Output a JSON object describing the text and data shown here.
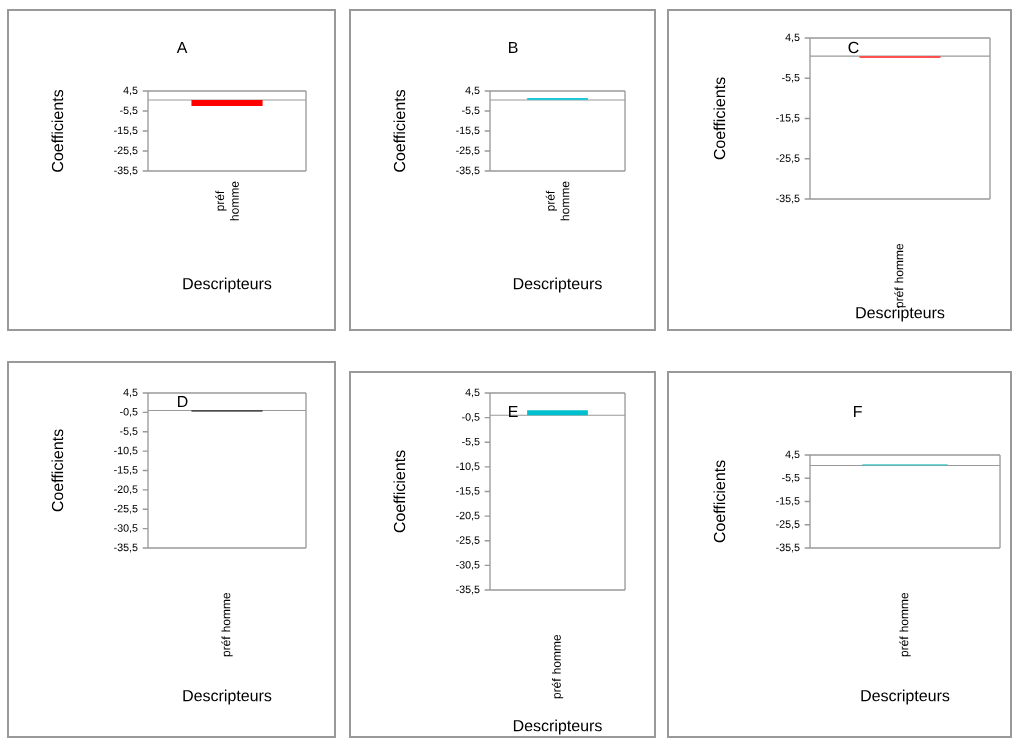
{
  "chart_data": [
    {
      "type": "bar",
      "title": "A",
      "xlabel": "Descripteurs",
      "ylabel": "Coefficients",
      "categories": [
        "préf homme"
      ],
      "values": [
        -3
      ],
      "color": "#ff0000",
      "ylim": [
        -35.5,
        4.5
      ],
      "yticks": [
        {
          "value": 4.5,
          "label": "4,5"
        },
        {
          "value": -5.5,
          "label": "-5,5"
        },
        {
          "value": -15.5,
          "label": "-15,5"
        },
        {
          "value": -25.5,
          "label": "-25,5"
        },
        {
          "value": -35.5,
          "label": "-35,5"
        }
      ]
    },
    {
      "type": "bar",
      "title": "B",
      "xlabel": "Descripteurs",
      "ylabel": "Coefficients",
      "categories": [
        "préf homme"
      ],
      "values": [
        1
      ],
      "color": "#1fc8d8",
      "ylim": [
        -35.5,
        4.5
      ],
      "yticks": [
        {
          "value": 4.5,
          "label": "4,5"
        },
        {
          "value": -5.5,
          "label": "-5,5"
        },
        {
          "value": -15.5,
          "label": "-15,5"
        },
        {
          "value": -25.5,
          "label": "-25,5"
        },
        {
          "value": -35.5,
          "label": "-35,5"
        }
      ]
    },
    {
      "type": "bar",
      "title": "C",
      "xlabel": "Descripteurs",
      "ylabel": "Coefficients",
      "categories": [
        "préf homme"
      ],
      "values": [
        -0.5
      ],
      "color": "#ff5050",
      "ylim": [
        -35.5,
        4.5
      ],
      "yticks": [
        {
          "value": 4.5,
          "label": "4,5"
        },
        {
          "value": -5.5,
          "label": "-5,5"
        },
        {
          "value": -15.5,
          "label": "-15,5"
        },
        {
          "value": -25.5,
          "label": "-25,5"
        },
        {
          "value": -35.5,
          "label": "-35,5"
        }
      ]
    },
    {
      "type": "bar",
      "title": "D",
      "xlabel": "Descripteurs",
      "ylabel": "Coefficients",
      "categories": [
        "préf homme"
      ],
      "values": [
        -0.3
      ],
      "color": "#000000",
      "ylim": [
        -35.5,
        4.5
      ],
      "yticks": [
        {
          "value": 4.5,
          "label": "4,5"
        },
        {
          "value": -0.5,
          "label": "-0,5"
        },
        {
          "value": -5.5,
          "label": "-5,5"
        },
        {
          "value": -10.5,
          "label": "-10,5"
        },
        {
          "value": -15.5,
          "label": "-15,5"
        },
        {
          "value": -20.5,
          "label": "-20,5"
        },
        {
          "value": -25.5,
          "label": "-25,5"
        },
        {
          "value": -30.5,
          "label": "-30,5"
        },
        {
          "value": -35.5,
          "label": "-35,5"
        }
      ]
    },
    {
      "type": "bar",
      "title": "E",
      "xlabel": "Descripteurs",
      "ylabel": "Coefficients",
      "categories": [
        "préf homme"
      ],
      "values": [
        1
      ],
      "color": "#00c0d0",
      "ylim": [
        -35.5,
        4.5
      ],
      "yticks": [
        {
          "value": 4.5,
          "label": "4,5"
        },
        {
          "value": -0.5,
          "label": "-0,5"
        },
        {
          "value": -5.5,
          "label": "-5,5"
        },
        {
          "value": -10.5,
          "label": "-10,5"
        },
        {
          "value": -15.5,
          "label": "-15,5"
        },
        {
          "value": -20.5,
          "label": "-20,5"
        },
        {
          "value": -25.5,
          "label": "-25,5"
        },
        {
          "value": -30.5,
          "label": "-30,5"
        },
        {
          "value": -35.5,
          "label": "-35,5"
        }
      ]
    },
    {
      "type": "bar",
      "title": "F",
      "xlabel": "Descripteurs",
      "ylabel": "Coefficients",
      "categories": [
        "préf homme"
      ],
      "values": [
        0.5
      ],
      "color": "#40c8c8",
      "ylim": [
        -35.5,
        4.5
      ],
      "yticks": [
        {
          "value": 4.5,
          "label": "4,5"
        },
        {
          "value": -5.5,
          "label": "-5,5"
        },
        {
          "value": -15.5,
          "label": "-15,5"
        },
        {
          "value": -25.5,
          "label": "-25,5"
        },
        {
          "value": -35.5,
          "label": "-35,5"
        }
      ]
    }
  ]
}
